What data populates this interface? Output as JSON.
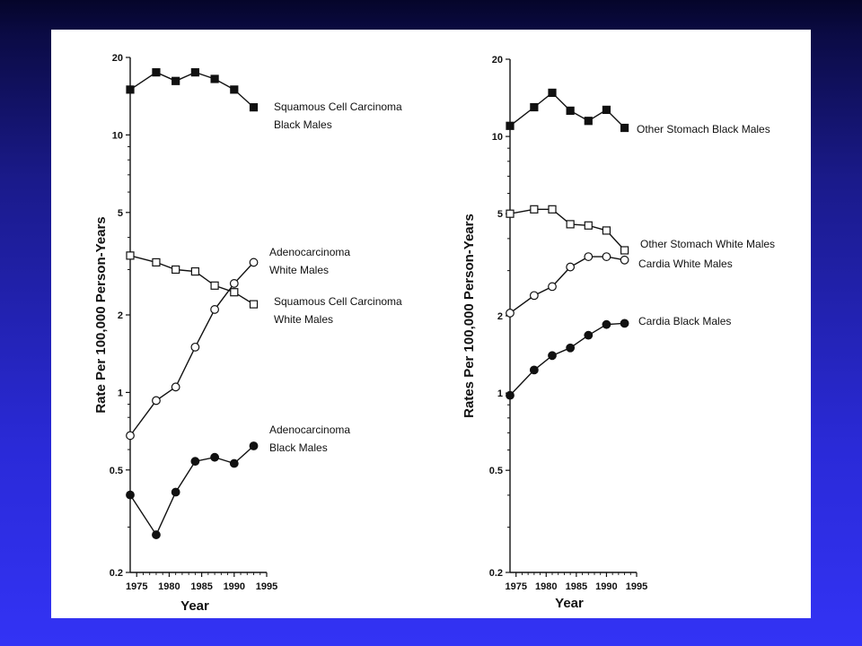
{
  "chart_data": [
    {
      "type": "line",
      "title": "",
      "xlabel": "Year",
      "ylabel": "Rate Per 100,000 Person-Years",
      "yscale": "log",
      "ylim": [
        0.2,
        20
      ],
      "xlim": [
        1974,
        1995
      ],
      "xticks": [
        "1975",
        "1980",
        "1985",
        "1990",
        "1995"
      ],
      "yticks": [
        "0.2",
        "0.5",
        "1",
        "2",
        "5",
        "10",
        "20"
      ],
      "x": [
        1974,
        1978,
        1981,
        1984,
        1987,
        1990,
        1993
      ],
      "series": [
        {
          "label_lines": [
            "Squamous Cell Carcinoma",
            "Black Males"
          ],
          "marker": "filled-square",
          "values": [
            15.0,
            17.5,
            16.2,
            17.5,
            16.5,
            15.0,
            12.8
          ]
        },
        {
          "label_lines": [
            "Squamous Cell Carcinoma",
            "White Males"
          ],
          "marker": "open-square",
          "values": [
            3.4,
            3.2,
            3.0,
            2.95,
            2.6,
            2.45,
            2.2
          ]
        },
        {
          "label_lines": [
            "Adenocarcinoma",
            "White Males"
          ],
          "marker": "open-circle",
          "values": [
            0.68,
            0.93,
            1.05,
            1.5,
            2.1,
            2.65,
            3.2
          ]
        },
        {
          "label_lines": [
            "Adenocarcinoma",
            "Black Males"
          ],
          "marker": "filled-circle",
          "values": [
            0.4,
            0.28,
            0.41,
            0.54,
            0.56,
            0.53,
            0.62
          ]
        }
      ]
    },
    {
      "type": "line",
      "title": "",
      "xlabel": "Year",
      "ylabel": "Rates Per 100,000 Person-Years",
      "yscale": "log",
      "ylim": [
        0.2,
        20
      ],
      "xlim": [
        1974,
        1995
      ],
      "xticks": [
        "1975",
        "1980",
        "1985",
        "1990",
        "1995"
      ],
      "yticks": [
        "0.2",
        "0.5",
        "1",
        "2",
        "5",
        "10",
        "20"
      ],
      "x": [
        1974,
        1978,
        1981,
        1984,
        1987,
        1990,
        1993
      ],
      "series": [
        {
          "label_lines": [
            "Other Stomach Black Males"
          ],
          "marker": "filled-square",
          "values": [
            11.0,
            13.0,
            14.8,
            12.6,
            11.5,
            12.7,
            10.8
          ]
        },
        {
          "label_lines": [
            "Other Stomach White Males"
          ],
          "marker": "open-square",
          "values": [
            5.0,
            5.2,
            5.2,
            4.55,
            4.5,
            4.3,
            3.6
          ]
        },
        {
          "label_lines": [
            "Cardia White Males"
          ],
          "marker": "open-circle",
          "values": [
            2.05,
            2.4,
            2.6,
            3.1,
            3.4,
            3.4,
            3.3
          ]
        },
        {
          "label_lines": [
            "Cardia Black Males"
          ],
          "marker": "filled-circle",
          "values": [
            0.98,
            1.23,
            1.4,
            1.5,
            1.68,
            1.85,
            1.87
          ]
        }
      ]
    }
  ]
}
